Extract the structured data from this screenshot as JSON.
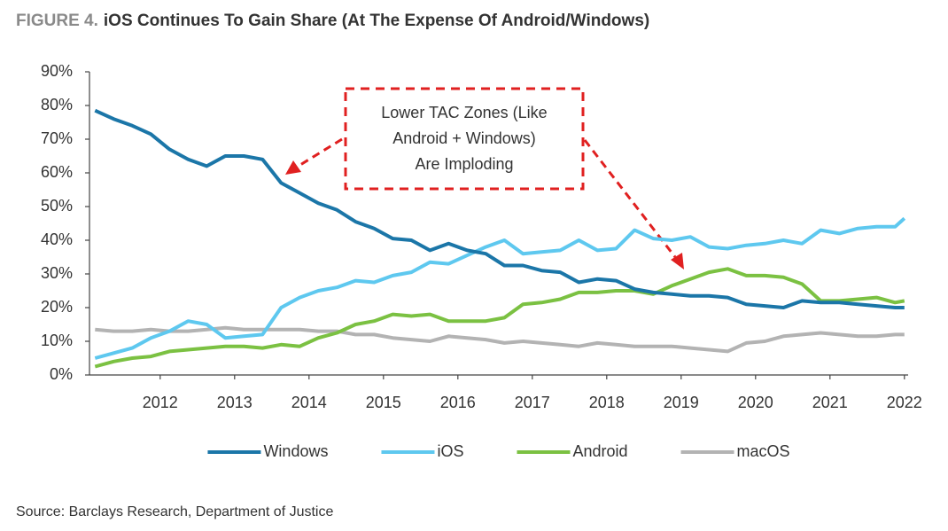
{
  "chart_data": {
    "type": "line",
    "figure_label": "FIGURE 4.",
    "title": "iOS Continues To Gain Share (At The Expense Of Android/Windows)",
    "annotation": [
      "Lower TAC Zones (Like",
      "Android + Windows)",
      "Are Imploding"
    ],
    "source": "Source: Barclays Research, Department of Justice",
    "x": [
      2011.125,
      2011.375,
      2011.625,
      2011.875,
      2012.125,
      2012.375,
      2012.625,
      2012.875,
      2013.125,
      2013.375,
      2013.625,
      2013.875,
      2014.125,
      2014.375,
      2014.625,
      2014.875,
      2015.125,
      2015.375,
      2015.625,
      2015.875,
      2016.125,
      2016.375,
      2016.625,
      2016.875,
      2017.125,
      2017.375,
      2017.625,
      2017.875,
      2018.125,
      2018.375,
      2018.625,
      2018.875,
      2019.125,
      2019.375,
      2019.625,
      2019.875,
      2020.125,
      2020.375,
      2020.625,
      2020.875,
      2021.125,
      2021.375,
      2021.625,
      2021.875,
      2022.0
    ],
    "series": [
      {
        "name": "Windows",
        "color": "#1b76a8",
        "values": [
          78.5,
          76,
          74,
          71.5,
          67,
          64,
          62,
          65,
          65,
          64,
          57,
          54,
          51,
          49,
          45.5,
          43.5,
          40.5,
          40,
          37,
          39,
          37,
          36,
          32.5,
          32.5,
          31,
          30.5,
          27.5,
          28.5,
          28,
          25.5,
          24.5,
          24,
          23.5,
          23.5,
          23,
          21,
          20.5,
          20,
          22,
          21.5,
          21.5,
          21,
          20.5,
          20,
          20
        ]
      },
      {
        "name": "iOS",
        "color": "#5ec8ef",
        "values": [
          5,
          6.5,
          8,
          11,
          13,
          16,
          15,
          11,
          11.5,
          12,
          20,
          23,
          25,
          26,
          28,
          27.5,
          29.5,
          30.5,
          33.5,
          33,
          35.5,
          38,
          40,
          36,
          36.5,
          37,
          40,
          37,
          37.5,
          43,
          40.5,
          40,
          41,
          38,
          37.5,
          38.5,
          39,
          40,
          39,
          43,
          42,
          43.5,
          44,
          44,
          46.5
        ]
      },
      {
        "name": "Android",
        "color": "#7bc142",
        "values": [
          2.5,
          4,
          5,
          5.5,
          7,
          7.5,
          8,
          8.5,
          8.5,
          8,
          9,
          8.5,
          11,
          12.5,
          15,
          16,
          18,
          17.5,
          18,
          16,
          16,
          16,
          17,
          21,
          21.5,
          22.5,
          24.5,
          24.5,
          25,
          25,
          24,
          26.5,
          28.5,
          30.5,
          31.5,
          29.5,
          29.5,
          29,
          27,
          22,
          22,
          22.5,
          23,
          21.5,
          22
        ]
      },
      {
        "name": "macOS",
        "color": "#b3b3b3",
        "values": [
          13.5,
          13,
          13,
          13.5,
          13,
          13,
          13.5,
          14,
          13.5,
          13.5,
          13.5,
          13.5,
          13,
          13,
          12,
          12,
          11,
          10.5,
          10,
          11.5,
          11,
          10.5,
          9.5,
          10,
          9.5,
          9,
          8.5,
          9.5,
          9,
          8.5,
          8.5,
          8.5,
          8,
          7.5,
          7,
          9.5,
          10,
          11.5,
          12,
          12.5,
          12,
          11.5,
          11.5,
          12,
          12
        ]
      }
    ],
    "xlim": [
      2011.05,
      2022.05
    ],
    "xticks": [
      2012,
      2013,
      2014,
      2015,
      2016,
      2017,
      2018,
      2019,
      2020,
      2021,
      2022
    ],
    "ylim": [
      0,
      90
    ],
    "yticks": [
      {
        "value": 0,
        "label": "0%"
      },
      {
        "value": 10,
        "label": "10%"
      },
      {
        "value": 20,
        "label": "20%"
      },
      {
        "value": 30,
        "label": "30%"
      },
      {
        "value": 40,
        "label": "40%"
      },
      {
        "value": 50,
        "label": "50%"
      },
      {
        "value": 60,
        "label": "60%"
      },
      {
        "value": 70,
        "label": "70%"
      },
      {
        "value": 80,
        "label": "80%"
      },
      {
        "value": 90,
        "label": "90%"
      }
    ],
    "grid": false,
    "legend": "bottom"
  }
}
